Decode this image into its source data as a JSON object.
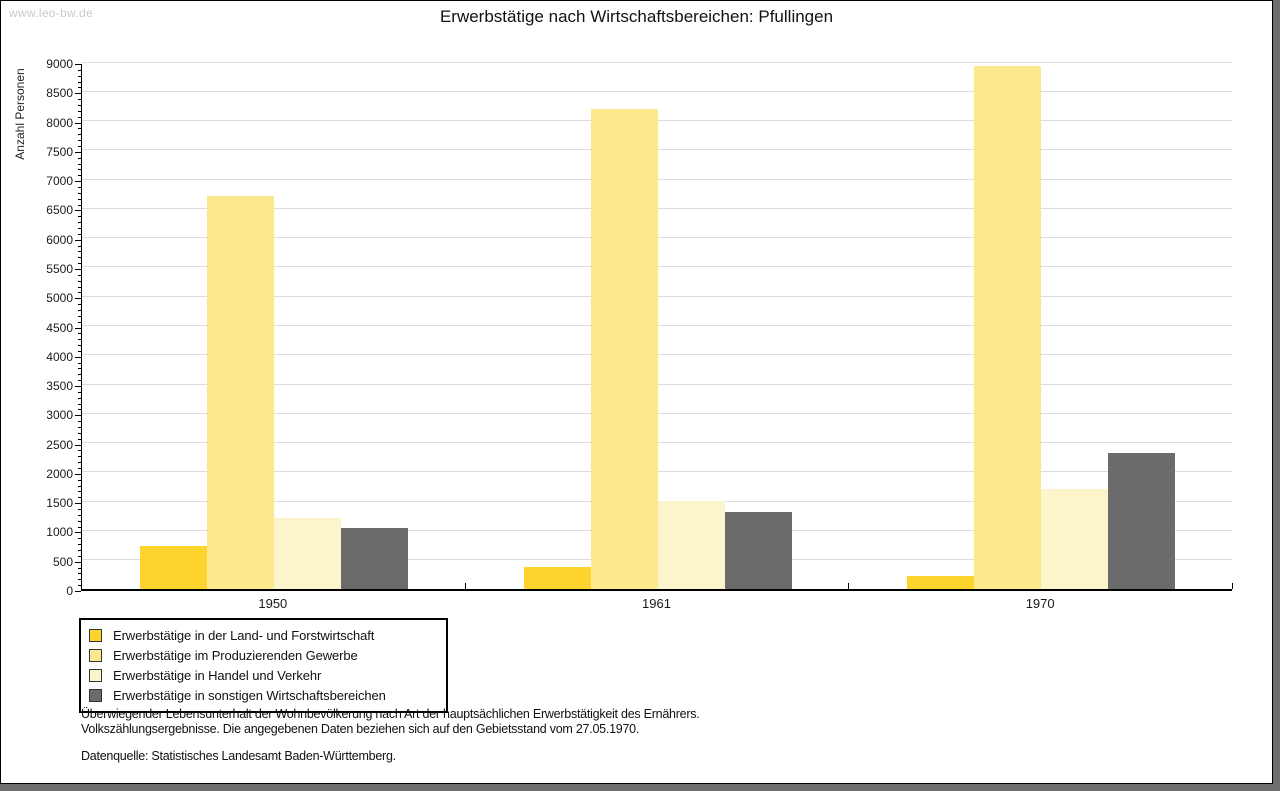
{
  "watermark": "www.leo-bw.de",
  "chart_data": {
    "type": "bar",
    "title": "Erwerbstätige nach Wirtschaftsbereichen: Pfullingen",
    "xlabel": "",
    "ylabel": "Anzahl Personen",
    "ylim": [
      0,
      9000
    ],
    "ytick_step": 500,
    "ytick_minor_step": 100,
    "grid": true,
    "legend_position": "bottom-left",
    "categories": [
      "1950",
      "1961",
      "1970"
    ],
    "series": [
      {
        "name": "Erwerbstätige in der Land- und Forstwirtschaft",
        "color": "#FDD32E",
        "values": [
          730,
          380,
          220
        ]
      },
      {
        "name": "Erwerbstätige im Produzierenden Gewerbe",
        "color": "#FCE88D",
        "values": [
          6720,
          8190,
          8930
        ]
      },
      {
        "name": "Erwerbstätige in Handel und Verkehr",
        "color": "#FCF4CB",
        "values": [
          1210,
          1500,
          1710
        ]
      },
      {
        "name": "Erwerbstätige in sonstigen Wirtschaftsbereichen",
        "color": "#6B6B6B",
        "values": [
          1050,
          1310,
          2330
        ]
      }
    ]
  },
  "colors": {
    "grid": "#dcdcdc",
    "axis": "#000000",
    "frame_edge": "#6e6e6e",
    "watermark": "#c9c9c9"
  },
  "footnotes": {
    "line1": "Überwiegender Lebensunterhalt der Wohnbevölkerung nach Art der hauptsächlichen Erwerbstätigkeit des Ernährers.",
    "line2": "Volkszählungsergebnisse. Die angegebenen Daten beziehen sich auf den Gebietsstand vom 27.05.1970.",
    "source": "Datenquelle: Statistisches Landesamt Baden-Württemberg."
  }
}
